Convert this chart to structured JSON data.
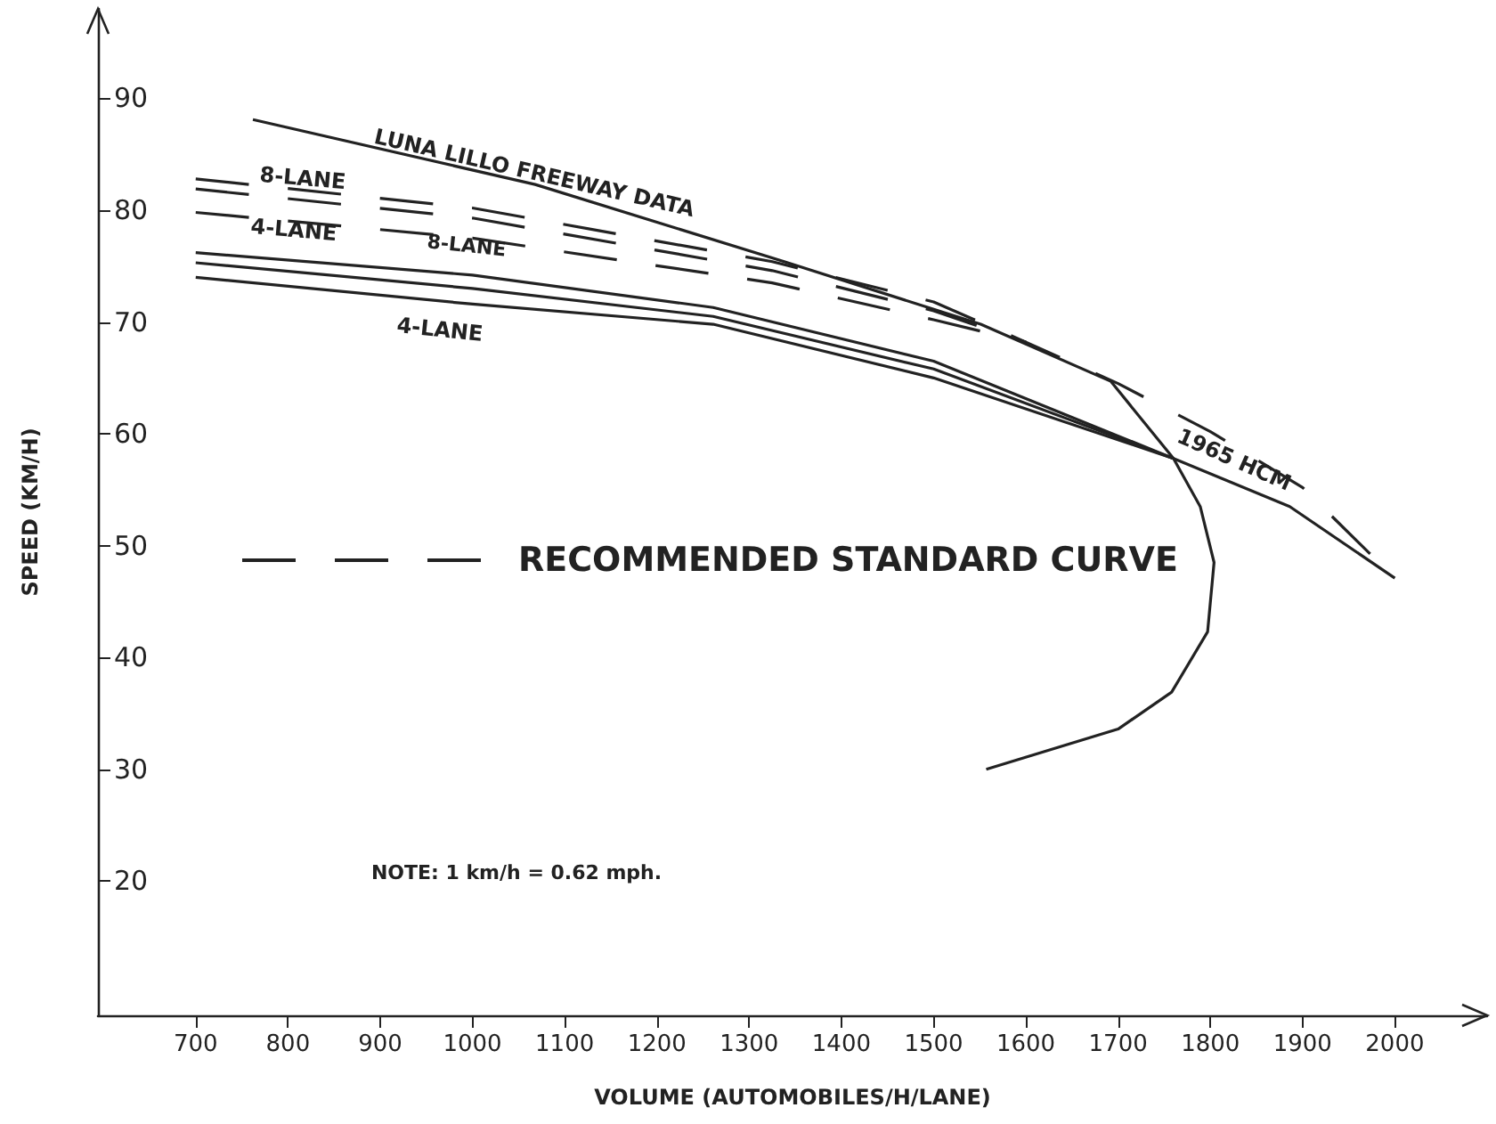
{
  "chart_data": {
    "type": "line",
    "xlabel": "VOLUME (AUTOMOBILES/H/LANE)",
    "ylabel": "SPEED (KM/H)",
    "xlim": [
      594,
      2100
    ],
    "ylim": [
      8,
      98
    ],
    "xticks": [
      700,
      800,
      900,
      1000,
      1100,
      1200,
      1300,
      1400,
      1500,
      1600,
      1700,
      1800,
      1900,
      2000
    ],
    "yticks": [
      20,
      30,
      40,
      50,
      60,
      70,
      80,
      90
    ],
    "grid": false,
    "legend": "left",
    "marker": "none",
    "series": [
      {
        "color": "#222222",
        "line_style": "solid",
        "x": [
          762,
          1068,
          1338,
          1551,
          1692,
          1760,
          1789,
          1804,
          1797,
          1758,
          1700,
          1557
        ],
        "values": [
          88.1,
          82.3,
          75.4,
          69.8,
          64.7,
          57.8,
          53.5,
          48.5,
          42.3,
          36.9,
          33.6,
          30
        ]
      },
      {
        "color": "#222222",
        "line_style": "solid",
        "x": [
          700,
          1000,
          1261,
          1500,
          1760,
          1886,
          2000
        ],
        "values": [
          76.2,
          74.2,
          71.3,
          66.5,
          57.8,
          53.5,
          47.1
        ]
      },
      {
        "color": "#222222",
        "line_style": "solid",
        "x": [
          700,
          1000,
          1261,
          1500,
          1760
        ],
        "values": [
          75.3,
          73.0,
          70.5,
          65.8,
          57.8
        ]
      },
      {
        "color": "#222222",
        "line_style": "solid",
        "x": [
          700,
          1000,
          1261,
          1500,
          1760
        ],
        "values": [
          74.0,
          71.6,
          69.8,
          65.0,
          57.8
        ]
      },
      {
        "name": "RECOMMENDED STANDARD CURVE",
        "color": "#222222",
        "line_style": "dashed",
        "x": [
          700,
          1000,
          1325,
          1500,
          1600,
          1700,
          1800,
          1900,
          2000
        ],
        "values": [
          82.8,
          80.2,
          75.4,
          71.8,
          68.2,
          64.5,
          60.2,
          55.2,
          47.1
        ]
      },
      {
        "color": "#222222",
        "line_style": "dashed",
        "x": [
          700,
          1000,
          1325,
          1500,
          1600
        ],
        "values": [
          81.9,
          79.3,
          74.6,
          71.0,
          68.2
        ]
      },
      {
        "color": "#222222",
        "line_style": "dashed",
        "x": [
          700,
          1000,
          1325,
          1500,
          1600
        ],
        "values": [
          79.8,
          77.5,
          73.5,
          70.2,
          68.2
        ]
      }
    ],
    "annotations": [
      "LUNA LILLO FREEWAY DATA",
      "8-LANE",
      "4-LANE",
      "8-LANE",
      "4-LANE",
      "1965 HCM",
      "NOTE: 1 km/h = 0.62 mph."
    ]
  }
}
